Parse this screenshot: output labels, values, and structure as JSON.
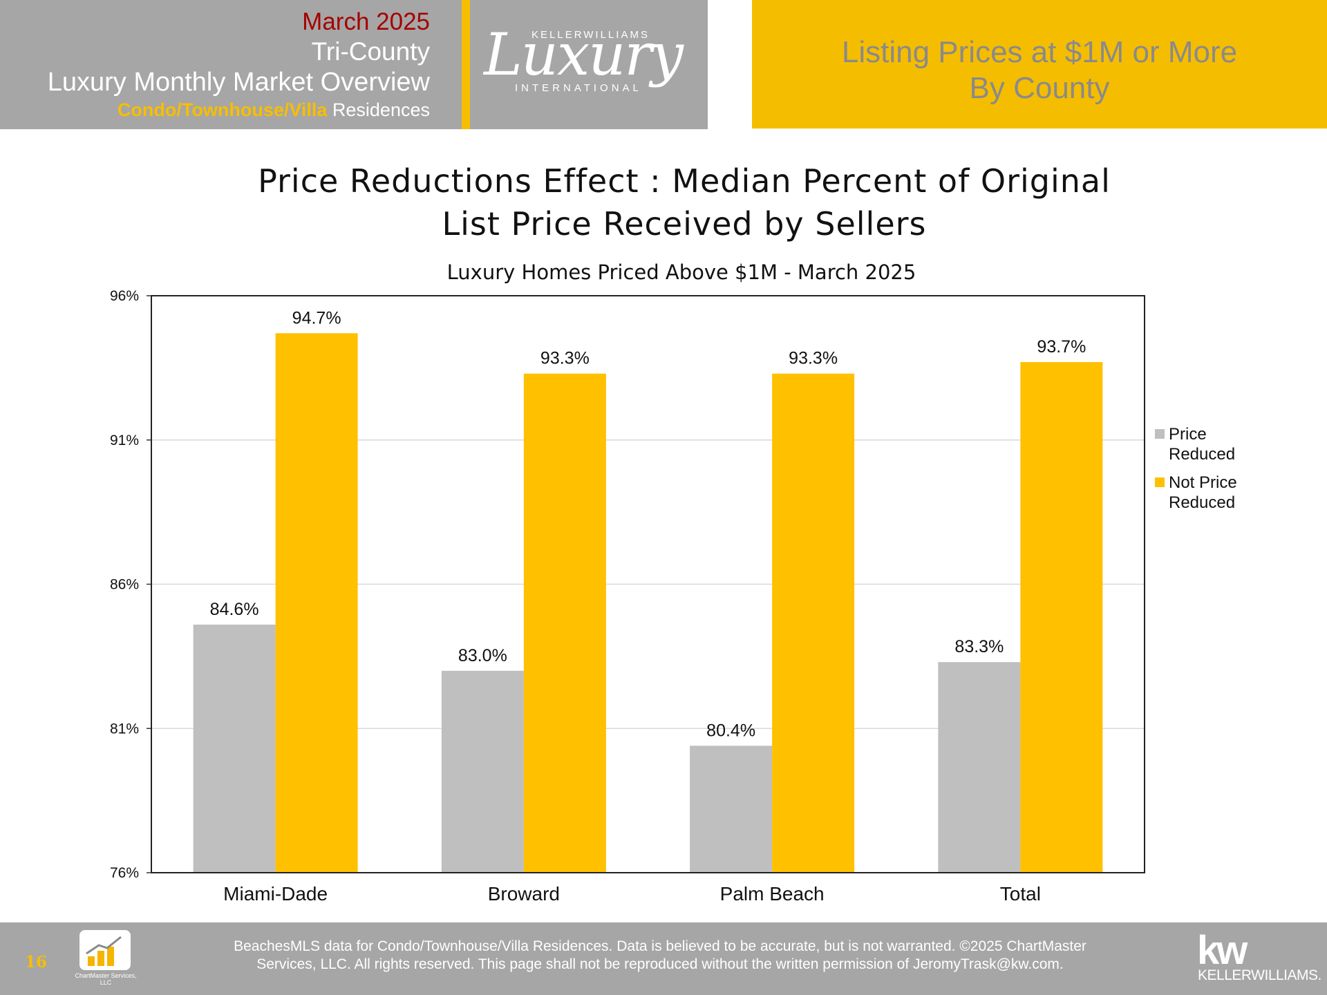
{
  "header": {
    "month": "March 2025",
    "region": "Tri-County",
    "overview": "Luxury Monthly Market Overview",
    "type_highlight": "Condo/Townhouse/Villa",
    "type_rest": " Residences",
    "logo_brand": "KELLERWILLIAMS",
    "logo_script": "Luxury",
    "logo_sub": "INTERNATIONAL",
    "section_title_line1": "Listing Prices at $1M or More",
    "section_title_line2": "By County"
  },
  "chart_data": {
    "type": "bar",
    "title_line1": "Price Reductions Effect : Median Percent of Original",
    "title_line2": "List Price Received by Sellers",
    "subtitle": "Luxury Homes Priced Above $1M - March 2025",
    "categories": [
      "Miami-Dade",
      "Broward",
      "Palm Beach",
      "Total"
    ],
    "series": [
      {
        "name": "Price Reduced",
        "color": "#bfbfbf",
        "values": [
          84.6,
          83.0,
          80.4,
          83.3
        ],
        "labels": [
          "84.6%",
          "83.0%",
          "80.4%",
          "83.3%"
        ]
      },
      {
        "name": "Not Price Reduced",
        "color": "#ffc000",
        "values": [
          94.7,
          93.3,
          93.3,
          93.7
        ],
        "labels": [
          "94.7%",
          "93.3%",
          "93.3%",
          "93.7%"
        ]
      }
    ],
    "legend_lines": [
      [
        "Price",
        "Reduced"
      ],
      [
        "Not Price",
        "Reduced"
      ]
    ],
    "ylim": [
      76,
      96
    ],
    "yticks": [
      76,
      81,
      86,
      91,
      96
    ],
    "ytick_labels": [
      "76%",
      "81%",
      "86%",
      "91%",
      "96%"
    ],
    "grid": true,
    "legend_position": "right"
  },
  "footer": {
    "page_number": "16",
    "chartmaster_logo_text": "ChartMaster Services, LLC",
    "disclaimer_line1": "BeachesMLS data for Condo/Townhouse/Villa Residences.  Data is believed to be accurate, but is not warranted.   ©2025  ChartMaster",
    "disclaimer_line2": "Services, LLC.  All rights reserved. This page shall not be reproduced without the written permission of JeromyTrask@kw.com.",
    "kw_mark": "kw",
    "kw_word": "KELLERWILLIAMS."
  }
}
